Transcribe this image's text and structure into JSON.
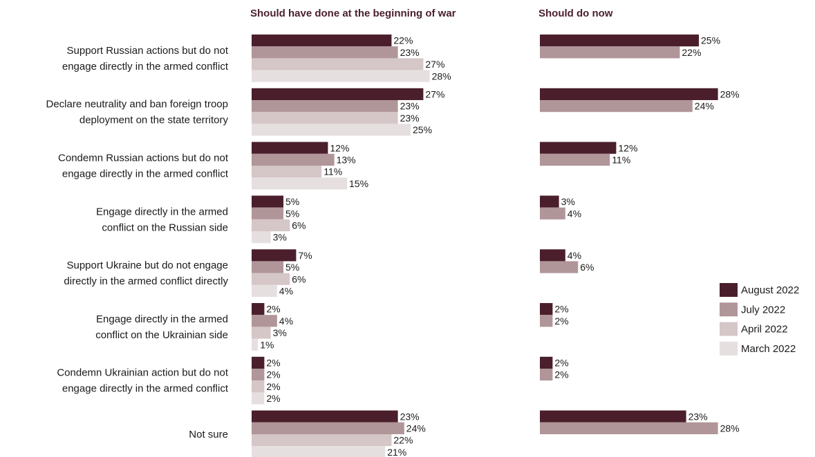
{
  "chart_data": {
    "type": "bar",
    "orientation": "horizontal",
    "categories": [
      [
        "Support Russian actions but do not",
        "engage directly in the armed conflict"
      ],
      [
        "Declare neutrality and ban foreign troop",
        "deployment on the state territory"
      ],
      [
        "Condemn Russian actions but do not",
        "engage directly in the armed conflict"
      ],
      [
        "Engage directly in the armed",
        "conflict on the Russian side"
      ],
      [
        "Support Ukraine but do not engage",
        "directly in the armed conflict directly"
      ],
      [
        "Engage directly in the armed",
        "conflict on the Ukrainian side"
      ],
      [
        "Condemn Ukrainian action but do not",
        "engage directly in the armed conflict"
      ],
      [
        "Not sure"
      ]
    ],
    "panels": [
      {
        "title": "Should have done at the beginning of war",
        "series": [
          {
            "name": "August 2022",
            "values": [
              22,
              27,
              12,
              5,
              7,
              2,
              2,
              23
            ]
          },
          {
            "name": "July 2022",
            "values": [
              23,
              23,
              13,
              5,
              5,
              4,
              2,
              24
            ]
          },
          {
            "name": "April 2022",
            "values": [
              27,
              23,
              11,
              6,
              6,
              3,
              2,
              22
            ]
          },
          {
            "name": "March 2022",
            "values": [
              28,
              25,
              15,
              3,
              4,
              1,
              2,
              21
            ]
          }
        ]
      },
      {
        "title": "Should do now",
        "series": [
          {
            "name": "August 2022",
            "values": [
              25,
              28,
              12,
              3,
              4,
              2,
              2,
              23
            ]
          },
          {
            "name": "July 2022",
            "values": [
              22,
              24,
              11,
              4,
              6,
              2,
              2,
              28
            ]
          }
        ]
      }
    ],
    "value_suffix": "%",
    "legend": {
      "position": "right",
      "entries": [
        "August 2022",
        "July 2022",
        "April 2022",
        "March 2022"
      ]
    },
    "colors": {
      "August 2022": "#4a1f2b",
      "July 2022": "#b09599",
      "April 2022": "#d5c6c8",
      "March 2022": "#e6dfe0"
    },
    "grid": false
  }
}
